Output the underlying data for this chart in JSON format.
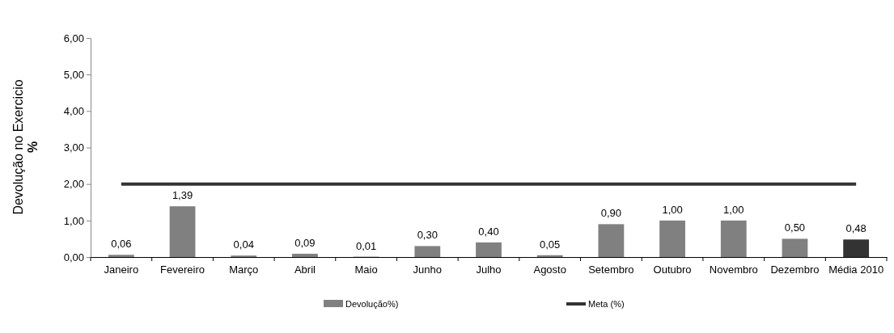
{
  "chart_data": {
    "type": "bar",
    "ylabel": "Devolução no Exercicio\n%",
    "categories": [
      "Janeiro",
      "Fevereiro",
      "Março",
      "Abril",
      "Maio",
      "Junho",
      "Julho",
      "Agosto",
      "Setembro",
      "Outubro",
      "Novembro",
      "Dezembro",
      "Média 2010"
    ],
    "series": [
      {
        "name": "Devolução%)",
        "color": "#808080",
        "colors": [
          "#808080",
          "#808080",
          "#808080",
          "#808080",
          "#808080",
          "#808080",
          "#808080",
          "#808080",
          "#808080",
          "#808080",
          "#808080",
          "#808080",
          "#333333"
        ],
        "values": [
          0.06,
          1.39,
          0.04,
          0.09,
          0.01,
          0.3,
          0.4,
          0.05,
          0.9,
          1.0,
          1.0,
          0.5,
          0.48
        ],
        "value_labels": [
          "0,06",
          "1,39",
          "0,04",
          "0,09",
          "0,01",
          "0,30",
          "0,40",
          "0,05",
          "0,90",
          "1,00",
          "1,00",
          "0,50",
          "0,48"
        ]
      },
      {
        "name": "Meta (%)",
        "type": "line",
        "color": "#333333",
        "values": [
          2,
          2,
          2,
          2,
          2,
          2,
          2,
          2,
          2,
          2,
          2,
          2,
          2
        ]
      }
    ],
    "ylim": [
      0,
      6
    ],
    "yticks": [
      {
        "value": 0,
        "label": "0,00"
      },
      {
        "value": 1,
        "label": "1,00"
      },
      {
        "value": 2,
        "label": "2,00"
      },
      {
        "value": 3,
        "label": "3,00"
      },
      {
        "value": 4,
        "label": "4,00"
      },
      {
        "value": 5,
        "label": "5,00"
      },
      {
        "value": 6,
        "label": "6,00"
      }
    ],
    "grid": false,
    "legend": "bottom",
    "marker": "none",
    "line_style": "solid"
  }
}
